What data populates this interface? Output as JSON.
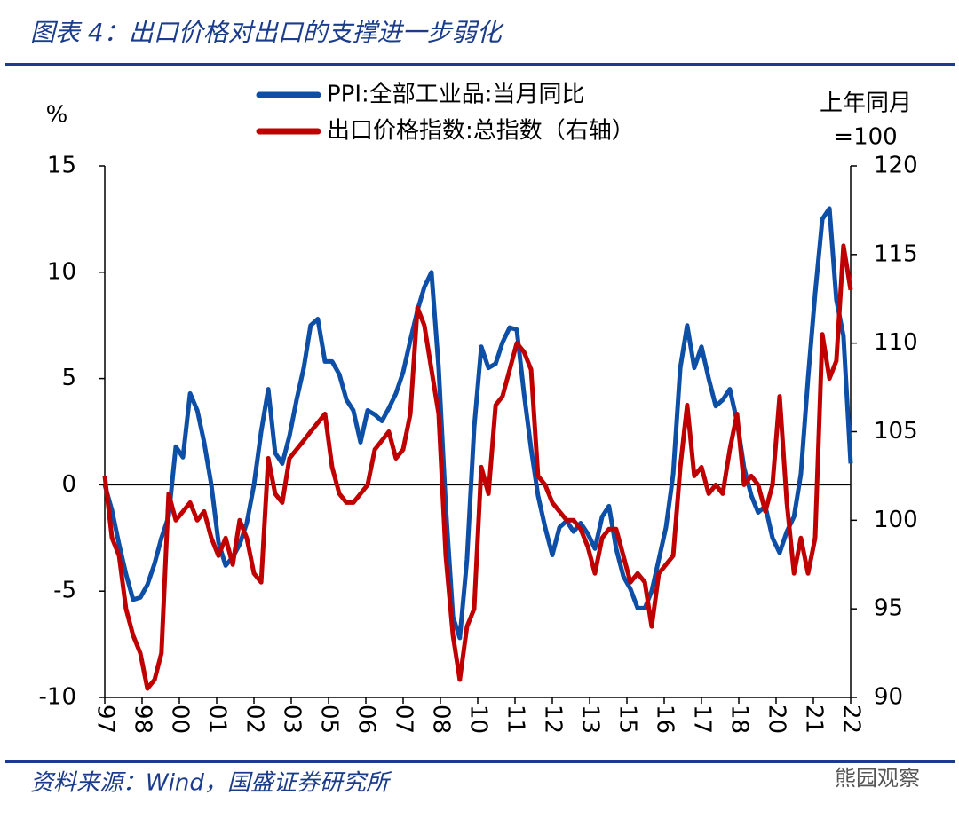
{
  "chart_data": {
    "type": "line",
    "title": "图表 4：出口价格对出口的支撑进一步弱化",
    "ylabel": "%",
    "y2label": [
      "上年同月",
      "=100"
    ],
    "source": "资料来源：Wind，国盛证券研究所",
    "watermark": "熊园观察",
    "xlim": [
      1997,
      2022
    ],
    "ylim": [
      -10,
      15
    ],
    "yticks": [
      -10,
      -5,
      0,
      5,
      10,
      15
    ],
    "y2lim": [
      90,
      120
    ],
    "y2ticks": [
      90,
      95,
      100,
      105,
      110,
      115,
      120
    ],
    "xticks": [
      {
        "value": 1997,
        "label": "97"
      },
      {
        "value": 1998.25,
        "label": "98"
      },
      {
        "value": 1999.5,
        "label": "00"
      },
      {
        "value": 2000.75,
        "label": "01"
      },
      {
        "value": 2002,
        "label": "02"
      },
      {
        "value": 2003.25,
        "label": "03"
      },
      {
        "value": 2004.5,
        "label": "05"
      },
      {
        "value": 2005.75,
        "label": "06"
      },
      {
        "value": 2007,
        "label": "07"
      },
      {
        "value": 2008.25,
        "label": "08"
      },
      {
        "value": 2009.5,
        "label": "10"
      },
      {
        "value": 2010.75,
        "label": "11"
      },
      {
        "value": 2012,
        "label": "12"
      },
      {
        "value": 2013.25,
        "label": "13"
      },
      {
        "value": 2014.5,
        "label": "15"
      },
      {
        "value": 2015.75,
        "label": "16"
      },
      {
        "value": 2017,
        "label": "17"
      },
      {
        "value": 2018.25,
        "label": "18"
      },
      {
        "value": 2019.5,
        "label": "20"
      },
      {
        "value": 2020.75,
        "label": "21"
      },
      {
        "value": 2022,
        "label": "22"
      }
    ],
    "legend": "top",
    "x": [
      1997,
      1997.24,
      1997.48,
      1997.71,
      1997.95,
      1998.19,
      1998.43,
      1998.67,
      1998.9,
      1999.14,
      1999.38,
      1999.62,
      1999.86,
      2000.1,
      2000.33,
      2000.57,
      2000.81,
      2001.05,
      2001.29,
      2001.52,
      2001.76,
      2002,
      2002.24,
      2002.48,
      2002.71,
      2002.95,
      2003.19,
      2003.43,
      2003.67,
      2003.9,
      2004.14,
      2004.38,
      2004.62,
      2004.86,
      2005.1,
      2005.33,
      2005.57,
      2005.81,
      2006.05,
      2006.29,
      2006.52,
      2006.76,
      2007,
      2007.24,
      2007.48,
      2007.71,
      2007.95,
      2008.19,
      2008.43,
      2008.67,
      2008.9,
      2009.14,
      2009.38,
      2009.62,
      2009.86,
      2010.1,
      2010.33,
      2010.57,
      2010.81,
      2011.05,
      2011.29,
      2011.52,
      2011.76,
      2012,
      2012.24,
      2012.48,
      2012.71,
      2012.95,
      2013.19,
      2013.43,
      2013.67,
      2013.9,
      2014.14,
      2014.38,
      2014.62,
      2014.86,
      2015.1,
      2015.33,
      2015.57,
      2015.81,
      2016.05,
      2016.29,
      2016.52,
      2016.76,
      2017,
      2017.24,
      2017.48,
      2017.71,
      2017.95,
      2018.19,
      2018.43,
      2018.67,
      2018.9,
      2019.14,
      2019.38,
      2019.62,
      2019.86,
      2020.1,
      2020.33,
      2020.57,
      2020.81,
      2021.05,
      2021.29,
      2021.52,
      2021.76,
      2022
    ],
    "series": [
      {
        "name": "PPI:全部工业品:当月同比",
        "color": "#0d4ea6",
        "values": [
          0,
          -1.2,
          -2.8,
          -4.2,
          -5.4,
          -5.3,
          -4.7,
          -3.7,
          -2.5,
          -1.5,
          1.8,
          1.3,
          4.3,
          3.5,
          2,
          0,
          -2.7,
          -3.8,
          -3.4,
          -2.8,
          -1.8,
          0,
          2.5,
          4.5,
          1.5,
          1,
          2.3,
          4,
          5.5,
          7.5,
          7.8,
          5.8,
          5.8,
          5.2,
          4,
          3.5,
          2,
          3.5,
          3.3,
          3,
          3.6,
          4.3,
          5.3,
          6.8,
          8.2,
          9.3,
          10,
          5.5,
          -1,
          -6.2,
          -7.2,
          -3.5,
          2.7,
          6.5,
          5.5,
          5.7,
          6.7,
          7.4,
          7.3,
          4.3,
          1.7,
          -0.5,
          -2,
          -3.3,
          -2,
          -1.7,
          -2.2,
          -1.8,
          -2.3,
          -3,
          -1.5,
          -1,
          -3,
          -4.3,
          -4.9,
          -5.8,
          -5.8,
          -5,
          -3.5,
          -2,
          0.5,
          5.5,
          7.5,
          5.5,
          6.5,
          5,
          3.7,
          4,
          4.5,
          3,
          0.8,
          -0.5,
          -1.3,
          -1,
          -2.5,
          -3.2,
          -2.2,
          -1.5,
          0.5,
          5,
          9,
          12.5,
          13,
          8.7,
          7,
          1
        ]
      },
      {
        "name": "出口价格指数:总指数（右轴）",
        "color": "#c00000",
        "axis": "y2",
        "values": [
          102.5,
          99,
          98,
          95,
          93.5,
          92.5,
          90.5,
          91,
          92.5,
          101.5,
          100,
          100.5,
          101,
          100,
          100.5,
          99,
          98,
          99,
          97.5,
          100,
          99,
          97,
          96.5,
          103.5,
          101.5,
          101,
          103.5,
          104,
          104.5,
          105,
          105.5,
          106,
          103,
          101.5,
          101,
          101,
          101.5,
          102,
          104,
          104.5,
          105,
          103.5,
          104,
          106,
          112,
          111,
          108.5,
          106,
          98,
          93.5,
          91,
          94,
          95,
          103,
          101.5,
          106.5,
          107,
          108.5,
          110,
          109.5,
          108.5,
          102.5,
          102,
          101,
          100.5,
          100,
          100,
          99.5,
          98.5,
          97,
          99,
          99.5,
          99.5,
          98,
          96.5,
          97,
          96.5,
          94,
          97,
          97.5,
          98,
          103,
          106.5,
          102.5,
          103,
          101.5,
          102,
          101.5,
          104,
          106,
          102,
          102.5,
          102,
          100.5,
          102,
          107,
          101,
          97,
          99,
          97,
          99,
          110.5,
          108,
          109,
          115.5,
          113
        ]
      }
    ]
  }
}
